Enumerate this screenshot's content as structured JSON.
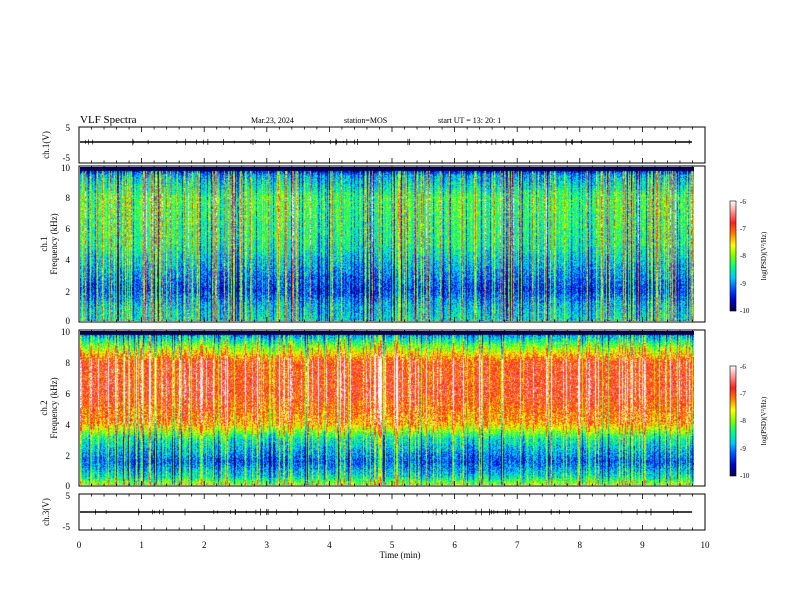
{
  "header": {
    "title": "VLF Spectra",
    "date": "Mar.23, 2024",
    "station": "station=MOS",
    "start_ut": "start  UT  =   13: 20: 1"
  },
  "chart_data": [
    {
      "type": "line",
      "name": "waveform-ch1",
      "ylabel": "ch.1(V)",
      "ylim": [
        -5,
        5
      ],
      "yticks": [
        "5",
        "-5"
      ],
      "xlim": [
        0,
        10
      ],
      "description_level": 0
    },
    {
      "type": "heatmap",
      "name": "spectrogram-ch1",
      "ylabel_top": "ch.1",
      "ylabel": "Frequency  (kHz)",
      "ylim": [
        0,
        10
      ],
      "yticks": [
        "0",
        "2",
        "4",
        "6",
        "8",
        "10"
      ],
      "xlim": [
        0,
        9.8
      ],
      "colorbar": {
        "label": "log(PSD)(V²/Hz)",
        "range": [
          -10,
          -6
        ],
        "ticks": [
          "-6",
          "-7",
          "-8",
          "-9",
          "-10"
        ]
      },
      "intensity_profile_khz": [
        [
          0,
          -8.6
        ],
        [
          1,
          -8.8
        ],
        [
          2,
          -9.3
        ],
        [
          3,
          -9.0
        ],
        [
          5,
          -8.4
        ],
        [
          8,
          -8.2
        ],
        [
          9.5,
          -8.9
        ],
        [
          10,
          -10
        ]
      ]
    },
    {
      "type": "heatmap",
      "name": "spectrogram-ch2",
      "ylabel_top": "ch.2",
      "ylabel": "Frequency  (kHz)",
      "ylim": [
        0,
        10
      ],
      "yticks": [
        "0",
        "2",
        "4",
        "6",
        "8",
        "10"
      ],
      "xlim": [
        0,
        9.8
      ],
      "colorbar": {
        "label": "log(PSD)(V²/Hz)",
        "range": [
          -10,
          -6
        ],
        "ticks": [
          "-6",
          "-7",
          "-8",
          "-9",
          "-10"
        ]
      },
      "intensity_profile_khz": [
        [
          0,
          -7.9
        ],
        [
          0.5,
          -8.6
        ],
        [
          1.5,
          -9.2
        ],
        [
          3,
          -8.5
        ],
        [
          4,
          -7.3
        ],
        [
          6,
          -6.8
        ],
        [
          8,
          -6.9
        ],
        [
          9,
          -8.0
        ],
        [
          10,
          -9.3
        ]
      ]
    },
    {
      "type": "line",
      "name": "waveform-ch3",
      "ylabel": "ch.3(V)",
      "ylim": [
        -5,
        5
      ],
      "yticks": [
        "5",
        "-5"
      ],
      "xlim": [
        0,
        10
      ],
      "xlabel": "Time  (min)",
      "xticks": [
        "0",
        "1",
        "2",
        "3",
        "4",
        "5",
        "6",
        "7",
        "8",
        "9",
        "10"
      ],
      "description_level": 0
    }
  ],
  "colors": {
    "colormap": [
      "#000050",
      "#0000c8",
      "#0050ff",
      "#00c8ff",
      "#00ff80",
      "#80ff00",
      "#ffff00",
      "#ff8000",
      "#ff2020",
      "#ff9090",
      "#ffffff"
    ]
  }
}
